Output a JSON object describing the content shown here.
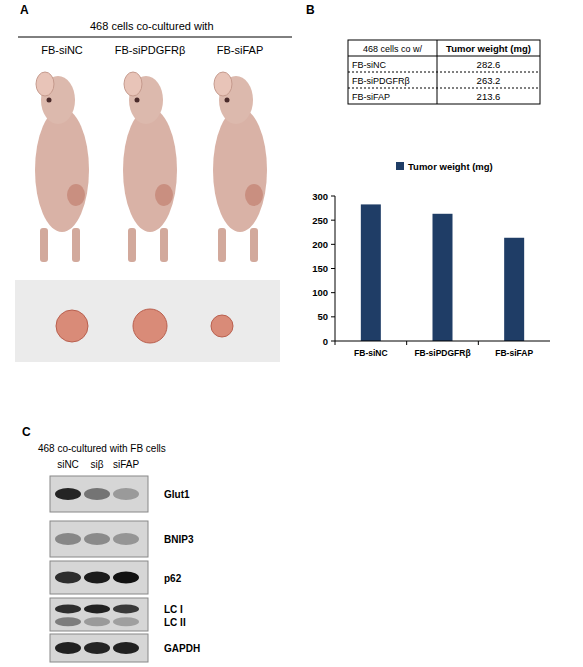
{
  "panel_a": {
    "label": "A",
    "header": "468 cells co-cultured with",
    "groups": [
      "FB-siNC",
      "FB-siPDGFRβ",
      "FB-siFAP"
    ]
  },
  "panel_b": {
    "label": "B",
    "table": {
      "header": [
        "468 cells co w/",
        "Tumor weight (mg)"
      ],
      "rows": [
        [
          "FB-siNC",
          282.6
        ],
        [
          "FB-siPDGFRβ",
          263.2
        ],
        [
          "FB-siFAP",
          213.6
        ]
      ]
    }
  },
  "chart_data": {
    "type": "bar",
    "categories": [
      "FB-siNC",
      "FB-siPDGFRβ",
      "FB-siFAP"
    ],
    "series": [
      {
        "name": "Tumor weight (mg)",
        "color": "#1f3d66",
        "values": [
          282.6,
          263.2,
          213.6
        ]
      }
    ],
    "ylim": [
      0,
      300
    ],
    "yticks": [
      0,
      50,
      100,
      150,
      200,
      250,
      300
    ],
    "grid": false,
    "legend": "top"
  },
  "panel_c": {
    "label": "C",
    "header": "468 co-cultured with FB cells",
    "lanes": [
      "siNC",
      "siβ",
      "siFAP"
    ],
    "blots": [
      [
        "Glut1"
      ],
      [
        "BNIP3"
      ],
      [
        "p62"
      ],
      [
        "LC I",
        "LC II"
      ],
      [
        "GAPDH"
      ]
    ]
  }
}
